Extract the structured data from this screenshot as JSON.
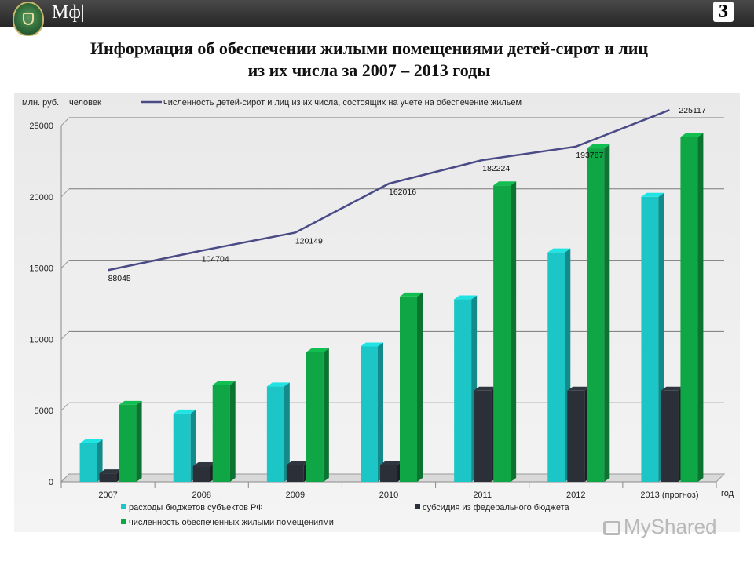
{
  "header": {
    "brand": "Мф|",
    "slide_number": "3"
  },
  "title": {
    "line1": "Информация об обеспечении жилыми помещениями детей-сирот и лиц",
    "line2": "из их числа за 2007 – 2013 годы"
  },
  "watermark": "MyShared",
  "colors": {
    "teal": "#1cc6c6",
    "dark": "#2a2f38",
    "green": "#0fa646",
    "line": "#4a4a86"
  },
  "chart_data": {
    "type": "bar",
    "y_unit_left": "млн. руб.",
    "y_unit_right": "человек",
    "xlabel": "год",
    "categories": [
      "2007",
      "2008",
      "2009",
      "2010",
      "2011",
      "2012",
      "2013 (прогноз)"
    ],
    "ylim": [
      0,
      25000
    ],
    "yticks": [
      0,
      5000,
      10000,
      15000,
      20000,
      25000
    ],
    "series": [
      {
        "name": "расходы бюджетов субъектов РФ",
        "type": "bar",
        "color": "#1cc6c6",
        "values": [
          2700,
          4800,
          6700,
          9500,
          12800,
          16100,
          20000
        ]
      },
      {
        "name": "субсидия из федерального бюджета",
        "type": "bar",
        "color": "#2a2f38",
        "values": [
          600,
          1100,
          1200,
          1200,
          6400,
          6400,
          6400
        ]
      },
      {
        "name": "численность обеспеченных жилыми помещениями",
        "type": "bar",
        "color": "#0fa646",
        "values": [
          5400,
          6800,
          9100,
          13000,
          20800,
          23400,
          24200
        ]
      },
      {
        "name": "численность детей-сирот и лиц из их числа, состоящих на учете на обеспечение жильем",
        "type": "line",
        "color": "#4a4a86",
        "values": [
          88045,
          104704,
          120149,
          162016,
          182224,
          193787,
          225117
        ],
        "labels": [
          "88045",
          "104704",
          "120149",
          "162016",
          "182224",
          "193787",
          "225117"
        ]
      }
    ],
    "legend_position": "bottom",
    "grid": true
  }
}
